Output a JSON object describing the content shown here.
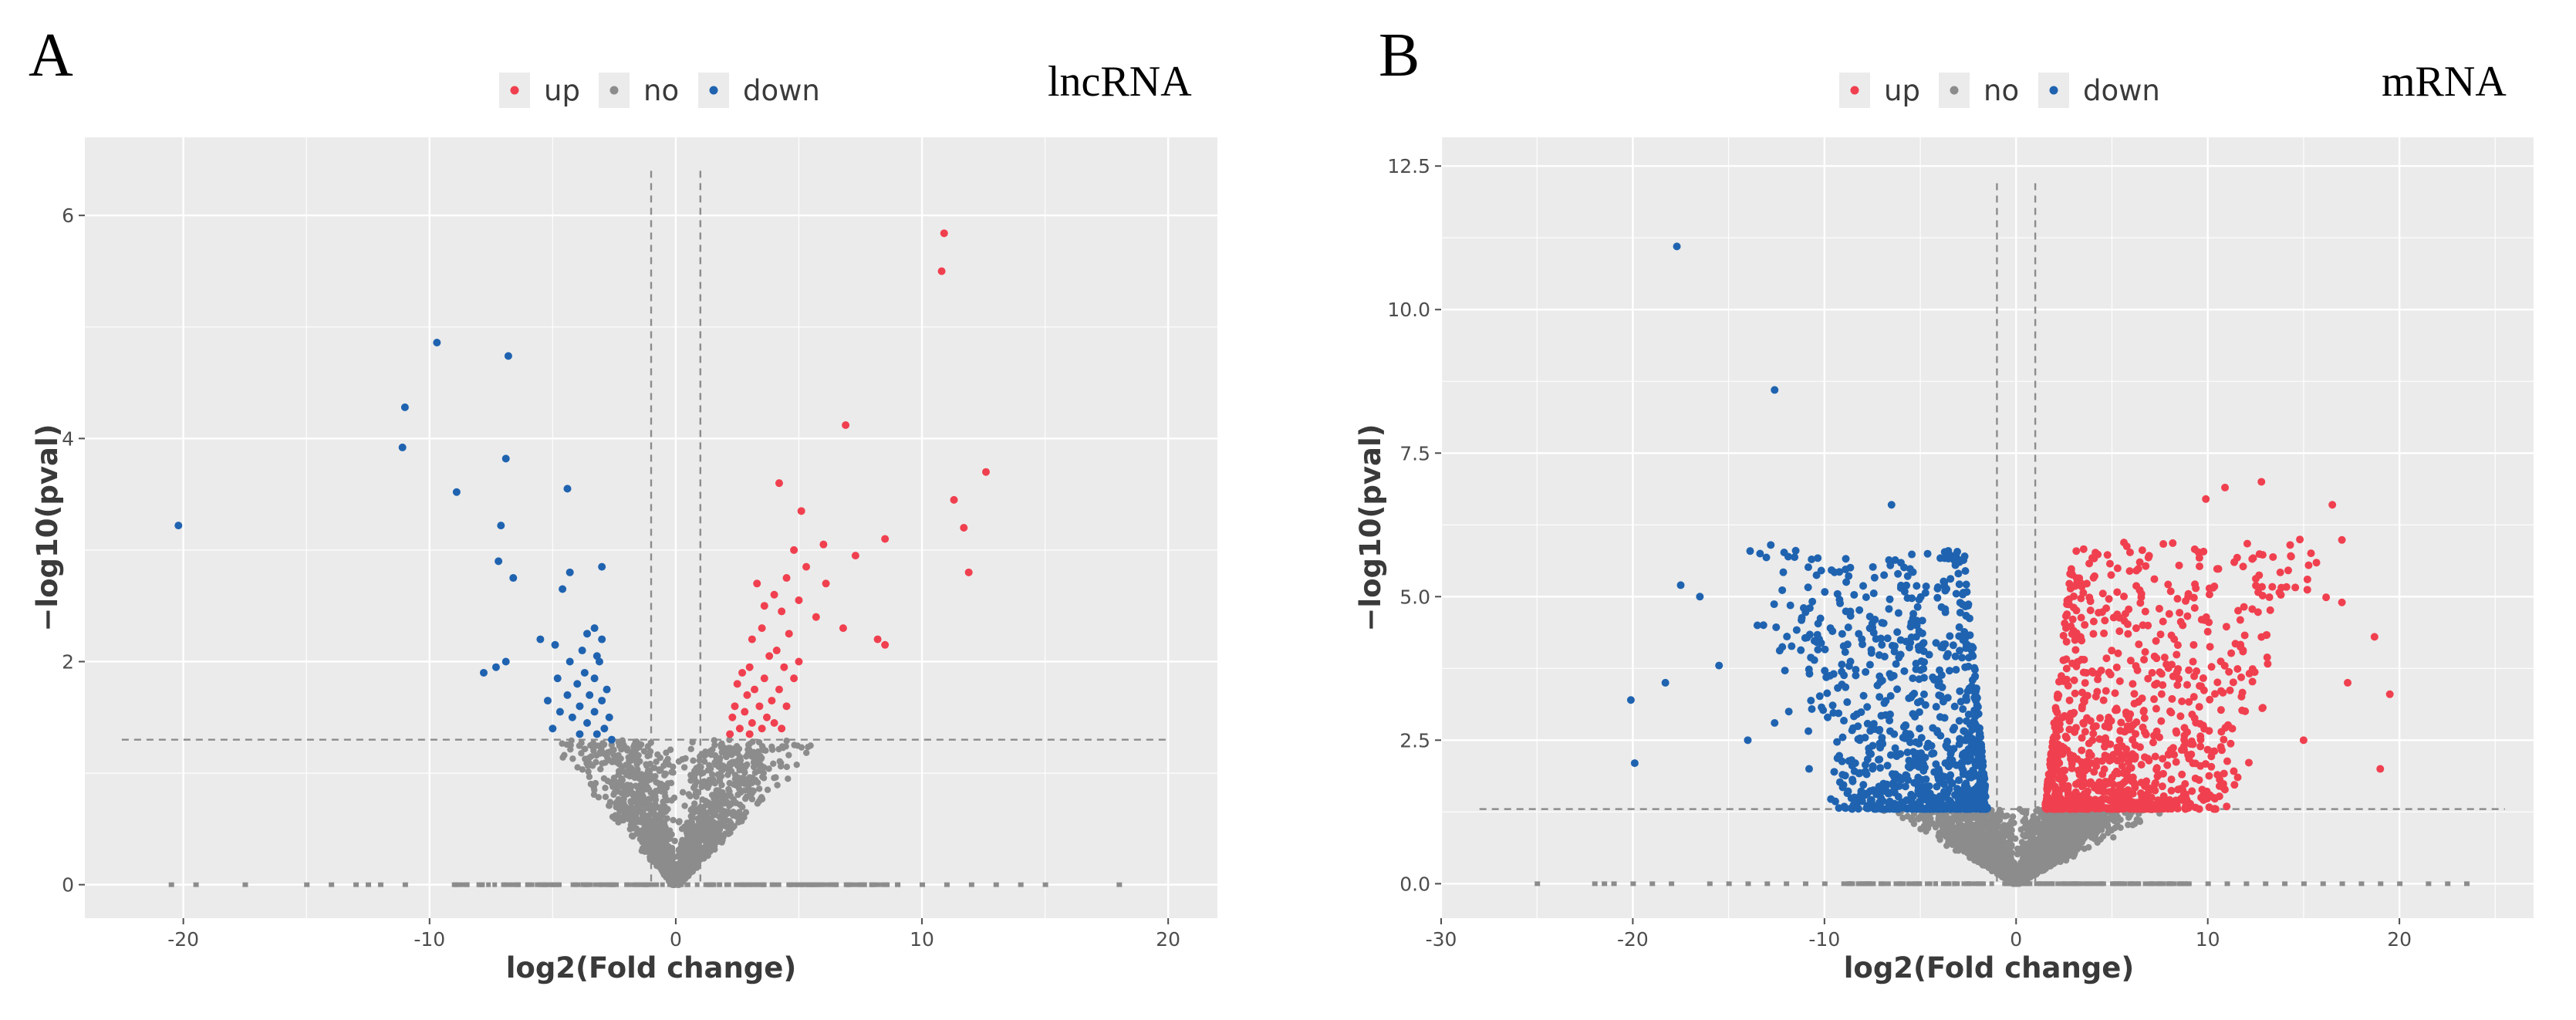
{
  "figure": {
    "legend": {
      "up": "up",
      "no": "no",
      "down": "down"
    },
    "colors": {
      "up": "#f0404f",
      "no": "#8c8c8c",
      "down": "#1f63b0",
      "panel_bg": "#ebebeb",
      "grid": "#ffffff",
      "threshold": "#8c8c8c"
    }
  },
  "chart_data": [
    {
      "type": "scatter",
      "panel": "A",
      "title": "lncRNA",
      "xlabel": "log2(Fold change)",
      "ylabel": "−log10(pval)",
      "xlim": [
        -24,
        22
      ],
      "ylim": [
        -0.3,
        6.7
      ],
      "xticks": [
        -20,
        -10,
        0,
        10,
        20
      ],
      "xtick_labels": [
        "-20",
        "-10",
        "0",
        "10",
        "20"
      ],
      "yticks": [
        0,
        2,
        4,
        6
      ],
      "ytick_labels": [
        "0",
        "2",
        "4",
        "6"
      ],
      "grid": true,
      "legend_position": "top",
      "thresholds": {
        "fc_left": -1,
        "fc_right": 1,
        "pval_line": 1.3,
        "fc_line_top": 6.4,
        "pval_line_x": [
          -22.5,
          20
        ]
      },
      "cloud": {
        "x_left_max": -5.5,
        "x_right_max": 6.5,
        "y_max": 1.3,
        "count": 1800
      },
      "zero_row": [
        -20.5,
        -19.5,
        -17.5,
        -15,
        -14,
        -13,
        -12.5,
        -12,
        -11,
        -9,
        -8.5,
        -8,
        -7,
        -6.5,
        -6,
        -5.5,
        -5,
        -4,
        -3.5,
        -3,
        3,
        4,
        5,
        5.5,
        6,
        7,
        8,
        8.5,
        9,
        10,
        11,
        12,
        13,
        14,
        15,
        18
      ],
      "series": [
        {
          "name": "up",
          "points": [
            [
              10.9,
              5.84
            ],
            [
              10.8,
              5.5
            ],
            [
              6.9,
              4.12
            ],
            [
              12.6,
              3.7
            ],
            [
              11.3,
              3.45
            ],
            [
              4.2,
              3.6
            ],
            [
              5.1,
              3.35
            ],
            [
              11.7,
              3.2
            ],
            [
              8.5,
              3.1
            ],
            [
              6.0,
              3.05
            ],
            [
              4.8,
              3.0
            ],
            [
              7.3,
              2.95
            ],
            [
              5.3,
              2.85
            ],
            [
              11.9,
              2.8
            ],
            [
              4.5,
              2.75
            ],
            [
              6.1,
              2.7
            ],
            [
              3.3,
              2.7
            ],
            [
              4.0,
              2.6
            ],
            [
              5.0,
              2.55
            ],
            [
              3.6,
              2.5
            ],
            [
              4.3,
              2.45
            ],
            [
              5.7,
              2.4
            ],
            [
              6.8,
              2.3
            ],
            [
              3.5,
              2.3
            ],
            [
              4.6,
              2.25
            ],
            [
              3.1,
              2.2
            ],
            [
              8.2,
              2.2
            ],
            [
              8.5,
              2.15
            ],
            [
              4.1,
              2.1
            ],
            [
              3.8,
              2.05
            ],
            [
              5.0,
              2.0
            ],
            [
              3.0,
              1.95
            ],
            [
              4.4,
              1.95
            ],
            [
              2.7,
              1.9
            ],
            [
              3.6,
              1.85
            ],
            [
              4.8,
              1.85
            ],
            [
              2.5,
              1.8
            ],
            [
              3.2,
              1.75
            ],
            [
              4.2,
              1.75
            ],
            [
              2.9,
              1.7
            ],
            [
              3.9,
              1.65
            ],
            [
              2.4,
              1.6
            ],
            [
              3.4,
              1.6
            ],
            [
              4.5,
              1.6
            ],
            [
              2.8,
              1.55
            ],
            [
              3.7,
              1.5
            ],
            [
              2.3,
              1.5
            ],
            [
              3.1,
              1.45
            ],
            [
              4.0,
              1.45
            ],
            [
              2.6,
              1.4
            ],
            [
              3.5,
              1.4
            ],
            [
              4.3,
              1.4
            ],
            [
              2.2,
              1.35
            ],
            [
              3.0,
              1.35
            ]
          ]
        },
        {
          "name": "down",
          "points": [
            [
              -20.2,
              3.22
            ],
            [
              -9.7,
              4.86
            ],
            [
              -6.8,
              4.74
            ],
            [
              -11.0,
              4.28
            ],
            [
              -11.1,
              3.92
            ],
            [
              -6.9,
              3.82
            ],
            [
              -8.9,
              3.52
            ],
            [
              -4.4,
              3.55
            ],
            [
              -7.1,
              3.22
            ],
            [
              -7.2,
              2.9
            ],
            [
              -3.0,
              2.85
            ],
            [
              -4.3,
              2.8
            ],
            [
              -6.6,
              2.75
            ],
            [
              -4.6,
              2.65
            ],
            [
              -3.3,
              2.3
            ],
            [
              -3.6,
              2.25
            ],
            [
              -5.5,
              2.2
            ],
            [
              -3.0,
              2.2
            ],
            [
              -4.9,
              2.15
            ],
            [
              -3.8,
              2.1
            ],
            [
              -3.2,
              2.05
            ],
            [
              -6.9,
              2.0
            ],
            [
              -4.3,
              2.0
            ],
            [
              -3.1,
              2.0
            ],
            [
              -7.3,
              1.95
            ],
            [
              -7.8,
              1.9
            ],
            [
              -3.7,
              1.9
            ],
            [
              -4.8,
              1.85
            ],
            [
              -3.3,
              1.85
            ],
            [
              -4.0,
              1.8
            ],
            [
              -2.8,
              1.75
            ],
            [
              -4.4,
              1.7
            ],
            [
              -3.5,
              1.7
            ],
            [
              -5.2,
              1.65
            ],
            [
              -3.0,
              1.65
            ],
            [
              -3.9,
              1.6
            ],
            [
              -4.7,
              1.55
            ],
            [
              -3.3,
              1.55
            ],
            [
              -2.7,
              1.5
            ],
            [
              -4.2,
              1.5
            ],
            [
              -3.6,
              1.45
            ],
            [
              -5.0,
              1.4
            ],
            [
              -2.9,
              1.4
            ],
            [
              -3.9,
              1.35
            ],
            [
              -3.2,
              1.35
            ],
            [
              -2.6,
              1.3
            ]
          ]
        }
      ]
    },
    {
      "type": "scatter",
      "panel": "B",
      "title": "mRNA",
      "xlabel": "log2(Fold change)",
      "ylabel": "−log10(pval)",
      "xlim": [
        -30,
        27
      ],
      "ylim": [
        -0.6,
        13
      ],
      "xticks": [
        -30,
        -20,
        -10,
        0,
        10,
        20
      ],
      "xtick_labels": [
        "-30",
        "-20",
        "-10",
        "0",
        "10",
        "20"
      ],
      "yticks": [
        0,
        2.5,
        5,
        7.5,
        10,
        12.5
      ],
      "ytick_labels": [
        "0.0",
        "2.5",
        "5.0",
        "7.5",
        "10.0",
        "12.5"
      ],
      "grid": true,
      "legend_position": "top",
      "thresholds": {
        "fc_left": -1,
        "fc_right": 1,
        "pval_line": 1.3,
        "fc_line_top": 12.2,
        "pval_line_x": [
          -28,
          25.5
        ]
      },
      "cloud": {
        "x_left_max": -7,
        "x_right_max": 8,
        "y_max": 1.3,
        "count": 3000
      },
      "zero_row": [
        -25,
        -22,
        -21.5,
        -21,
        -20,
        -19,
        -18,
        -16,
        -15,
        -14,
        -13,
        -12,
        -11,
        -10,
        -9,
        -8,
        -7,
        -6,
        6,
        7,
        8,
        9,
        10,
        11,
        12,
        13,
        14,
        15,
        16,
        17,
        18,
        19,
        20,
        21.5,
        22.5,
        23.5
      ],
      "series": [
        {
          "name": "up",
          "anchor_points": [
            [
              19.5,
              3.3
            ],
            [
              19.0,
              2.0
            ],
            [
              16.5,
              6.6
            ],
            [
              17.0,
              4.9
            ],
            [
              18.7,
              4.3
            ],
            [
              14.3,
              5.9
            ],
            [
              12.8,
              7.0
            ],
            [
              10.9,
              6.9
            ],
            [
              9.9,
              6.7
            ],
            [
              15.2,
              5.3
            ],
            [
              17.3,
              3.5
            ],
            [
              15.0,
              2.5
            ]
          ],
          "cluster": {
            "x": [
              1.5,
              15
            ],
            "y": [
              1.3,
              6.0
            ],
            "count": 950
          }
        },
        {
          "name": "down",
          "anchor_points": [
            [
              -17.7,
              11.1
            ],
            [
              -12.6,
              8.6
            ],
            [
              -6.5,
              6.6
            ],
            [
              -20.1,
              3.2
            ],
            [
              -19.9,
              2.1
            ],
            [
              -18.3,
              3.5
            ],
            [
              -17.5,
              5.2
            ],
            [
              -16.5,
              5.0
            ],
            [
              -12.8,
              5.9
            ],
            [
              -11.5,
              5.8
            ],
            [
              -13.5,
              4.5
            ],
            [
              -15.5,
              3.8
            ],
            [
              -14.0,
              2.5
            ],
            [
              -12.6,
              2.8
            ],
            [
              -10.8,
              2.0
            ]
          ],
          "cluster": {
            "x": [
              -12.5,
              -1.5
            ],
            "y": [
              1.3,
              5.8
            ],
            "count": 900
          }
        }
      ]
    }
  ]
}
